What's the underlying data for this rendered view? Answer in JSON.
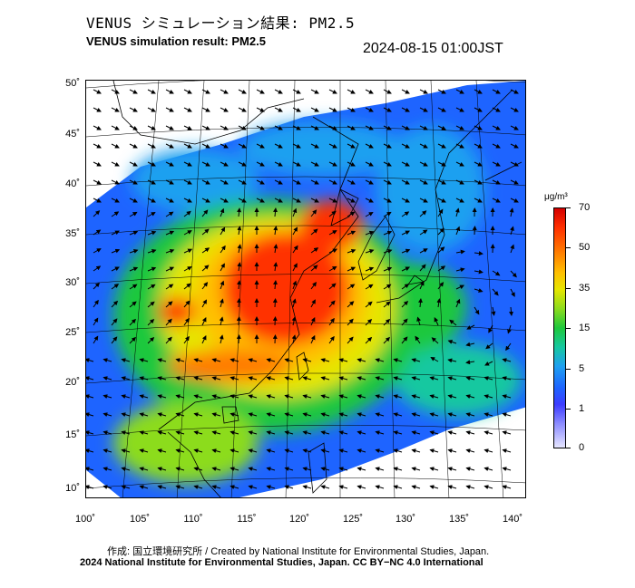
{
  "header": {
    "title_jp": "VENUS シミュレーション結果: PM2.5",
    "title_en": "VENUS simulation result: PM2.5",
    "timestamp": "2024-08-15 01:00JST"
  },
  "map": {
    "lat_labels": [
      "50˚",
      "45˚",
      "40˚",
      "35˚",
      "30˚",
      "25˚",
      "20˚",
      "15˚",
      "10˚"
    ],
    "lon_labels": [
      "100˚",
      "105˚",
      "110˚",
      "115˚",
      "120˚",
      "125˚",
      "130˚",
      "135˚",
      "140˚"
    ],
    "variable": "PM2.5",
    "wind_vectors": "shown",
    "hotspot": "North China Plain / eastern China (> 70 µg/m³)"
  },
  "colorbar": {
    "unit": "μg/m³",
    "labels": [
      "70",
      "50",
      "35",
      "15",
      "5",
      "1",
      "0"
    ],
    "colors": [
      "#d40000",
      "#ff7a00",
      "#e6e600",
      "#1ec83c",
      "#1ea0f0",
      "#3c3cff",
      "#e6e6ff"
    ]
  },
  "footer": {
    "credit_line": "作成: 国立環境研究所 / Created by National Institute for Environmental Studies, Japan.",
    "copyright_line": "2024 National Institute for Environmental Studies, Japan. CC BY−NC 4.0 International"
  }
}
